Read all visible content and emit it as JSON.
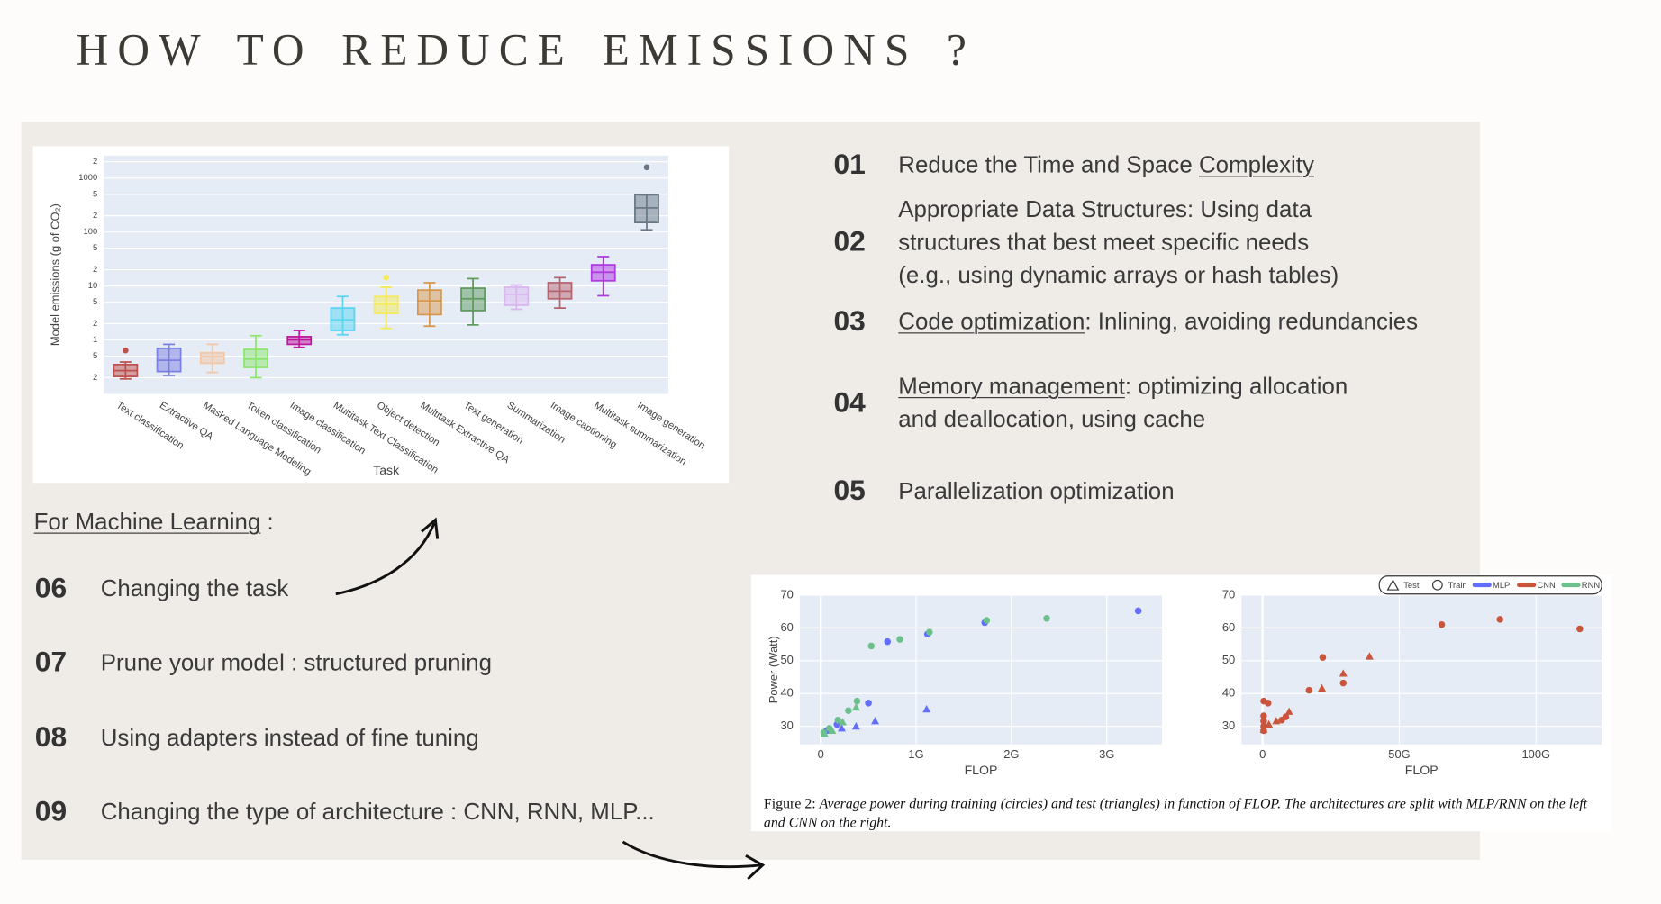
{
  "title": "HOW TO REDUCE EMISSIONS ?",
  "items": [
    {
      "number": "01",
      "lines": [
        [
          {
            "text": "Reduce the Time and Space "
          },
          {
            "text": "Complexity",
            "underline": true
          }
        ]
      ]
    },
    {
      "number": "02",
      "lines": [
        [
          {
            "text": "Appropriate Data Structures: Using data"
          }
        ],
        [
          {
            "text": "structures that best meet specific needs"
          }
        ],
        [
          {
            "text": "(e.g., using dynamic arrays or hash tables)"
          }
        ]
      ]
    },
    {
      "number": "03",
      "lines": [
        [
          {
            "text": "Code optimization",
            "underline": true
          },
          {
            "text": ": Inlining, avoiding redundancies"
          }
        ]
      ]
    },
    {
      "number": "04",
      "lines": [
        [
          {
            "text": "Memory management",
            "underline": true
          },
          {
            "text": ": optimizing allocation"
          }
        ],
        [
          {
            "text": "and deallocation, using cache"
          }
        ]
      ]
    },
    {
      "number": "05",
      "lines": [
        [
          {
            "text": "Parallelization optimization"
          }
        ]
      ]
    }
  ],
  "ml_heading": [
    {
      "text": "For Machine Learning",
      "underline": true
    },
    {
      "text": " :"
    }
  ],
  "ml_items": [
    {
      "number": "06",
      "lines": [
        [
          {
            "text": "Changing the task"
          }
        ]
      ]
    },
    {
      "number": "07",
      "lines": [
        [
          {
            "text": "Prune your model : structured pruning"
          }
        ]
      ]
    },
    {
      "number": "08",
      "lines": [
        [
          {
            "text": "Using adapters instead of fine tuning"
          }
        ]
      ]
    },
    {
      "number": "09",
      "lines": [
        [
          {
            "text": "Changing the type of architecture : CNN, RNN, MLP..."
          }
        ]
      ]
    }
  ],
  "figure_caption": {
    "label": "Figure 2:",
    "text": "Average power during training (circles) and test (triangles) in function of FLOP. The architectures are split with MLP/RNN on the left and CNN on the right."
  },
  "chart_data": [
    {
      "type": "box",
      "xlabel": "Task",
      "ylabel": "Model emissions (g of CO₂)",
      "log_y": true,
      "grid": true,
      "ylim": [
        0.1,
        2600
      ],
      "yticks": [
        {
          "value": 0.2,
          "label": "2"
        },
        {
          "value": 0.5,
          "label": "5"
        },
        1,
        {
          "value": 2,
          "label": "2"
        },
        {
          "value": 5,
          "label": "5"
        },
        10,
        {
          "value": 20,
          "label": "2"
        },
        {
          "value": 50,
          "label": "5"
        },
        100,
        {
          "value": 200,
          "label": "2"
        },
        {
          "value": 500,
          "label": "5"
        },
        1000,
        {
          "value": 2000,
          "label": "2"
        }
      ],
      "categories": [
        "Text classification",
        "Extractive QA",
        "Masked Language Modeling",
        "Token classification",
        "Image classification",
        "Multitask Text Classification",
        "Object detection",
        "Multitask Extractive QA",
        "Text generation",
        "Summarization",
        "Image captioning",
        "Multitask summarization",
        "Image generation"
      ],
      "colors": [
        "#c0504d",
        "#7b7fe0",
        "#f2c6a6",
        "#8ee66e",
        "#c0189e",
        "#5ad4f0",
        "#f5ea5a",
        "#d8974e",
        "#5f9a5f",
        "#d9b7ee",
        "#b8646f",
        "#b03adf",
        "#6a7885"
      ],
      "boxes": [
        {
          "min": 0.19,
          "q1": 0.21,
          "median": 0.27,
          "q3": 0.35,
          "max": 0.39,
          "outliers": [
            0.64
          ]
        },
        {
          "min": 0.22,
          "q1": 0.26,
          "median": 0.42,
          "q3": 0.7,
          "max": 0.83,
          "outliers": []
        },
        {
          "min": 0.25,
          "q1": 0.37,
          "median": 0.49,
          "q3": 0.58,
          "max": 0.83,
          "outliers": []
        },
        {
          "min": 0.2,
          "q1": 0.31,
          "median": 0.44,
          "q3": 0.67,
          "max": 1.2,
          "outliers": []
        },
        {
          "min": 0.73,
          "q1": 0.83,
          "median": 1,
          "q3": 1.15,
          "max": 1.5,
          "outliers": []
        },
        {
          "min": 1.25,
          "q1": 1.5,
          "median": 2.36,
          "q3": 3.9,
          "max": 6.4,
          "outliers": []
        },
        {
          "min": 1.64,
          "q1": 3.1,
          "median": 4.6,
          "q3": 6.4,
          "max": 9.5,
          "outliers": [
            14.3
          ]
        },
        {
          "min": 1.8,
          "q1": 2.95,
          "median": 5.3,
          "q3": 8.4,
          "max": 11.5,
          "outliers": []
        },
        {
          "min": 1.9,
          "q1": 3.5,
          "median": 5.8,
          "q3": 9.1,
          "max": 13.7,
          "outliers": []
        },
        {
          "min": 3.7,
          "q1": 4.4,
          "median": 7,
          "q3": 9.5,
          "max": 10.4,
          "outliers": []
        },
        {
          "min": 3.9,
          "q1": 5.8,
          "median": 8,
          "q3": 11.5,
          "max": 14.3,
          "outliers": []
        },
        {
          "min": 6.6,
          "q1": 12.5,
          "median": 18,
          "q3": 24.7,
          "max": 35,
          "outliers": []
        },
        {
          "min": 110,
          "q1": 150,
          "median": 280,
          "q3": 490,
          "max": 490,
          "outliers": [
            1580
          ]
        }
      ]
    },
    {
      "type": "scatter",
      "xlabel": "FLOP",
      "ylabel": "Power (Watt)",
      "grid": true,
      "xlim": [
        -220000000,
        3580000000
      ],
      "ylim": [
        24.5,
        70
      ],
      "xticks": [
        0,
        {
          "value": 1000000000,
          "label": "1G"
        },
        {
          "value": 2000000000,
          "label": "2G"
        },
        {
          "value": 3000000000,
          "label": "3G"
        }
      ],
      "yticks": [
        30,
        40,
        50,
        60,
        70
      ],
      "series": [
        {
          "color": "#636efa",
          "marker": "circle",
          "x": [
            3330000000,
            1720000000,
            1120000000,
            700000000,
            500000000,
            170000000,
            60000000
          ],
          "values": [
            65.2,
            61.6,
            58.1,
            55.8,
            37.1,
            30.6,
            28.7
          ]
        },
        {
          "color": "#636efa",
          "marker": "triangle",
          "x": [
            1110000000,
            570000000,
            370000000,
            220000000,
            110000000
          ],
          "values": [
            35.2,
            31.6,
            30,
            29.4,
            28.7
          ]
        },
        {
          "color": "#6cc08b",
          "marker": "circle",
          "x": [
            2370000000,
            1740000000,
            1140000000,
            830000000,
            530000000,
            380000000,
            290000000,
            180000000,
            90000000,
            30000000
          ],
          "values": [
            62.9,
            62.3,
            58.7,
            56.5,
            54.5,
            37.7,
            34.8,
            31.9,
            29.4,
            28.1
          ]
        },
        {
          "color": "#6cc08b",
          "marker": "triangle",
          "x": [
            370000000,
            230000000,
            120000000,
            40000000
          ],
          "values": [
            35.8,
            31.3,
            28.7,
            27.7
          ]
        }
      ]
    },
    {
      "type": "scatter",
      "xlabel": "FLOP",
      "grid": true,
      "xlim": [
        -7700000000,
        124000000000
      ],
      "ylim": [
        24.5,
        70
      ],
      "xticks": [
        0,
        {
          "value": 50000000000,
          "label": "50G"
        },
        {
          "value": 100000000000,
          "label": "100G"
        }
      ],
      "yticks": [
        30,
        40,
        50,
        60,
        70
      ],
      "legend": [
        {
          "label": "Test",
          "marker": "triangle"
        },
        {
          "label": "Train",
          "marker": "circle"
        },
        {
          "label": "MLP",
          "color": "#636efa"
        },
        {
          "label": "CNN",
          "color": "#c9563c"
        },
        {
          "label": "RNN",
          "color": "#6cc08b"
        }
      ],
      "series": [
        {
          "color": "#c9563c",
          "marker": "circle",
          "x": [
            116000000000,
            86800000000,
            65500000000,
            22000000000,
            29500000000,
            17000000000,
            400000000,
            2000000000,
            400000000,
            400000000,
            400000000,
            400000000,
            8500000000,
            7000000000
          ],
          "values": [
            59.7,
            62.6,
            61,
            51,
            43.2,
            41,
            37.7,
            37.1,
            33.2,
            31.6,
            30,
            28.7,
            32.9,
            31.9
          ]
        },
        {
          "color": "#c9563c",
          "marker": "triangle",
          "x": [
            39100000000,
            29500000000,
            21700000000,
            9700000000,
            5000000000,
            2300000000,
            400000000
          ],
          "values": [
            51.3,
            46.1,
            41.6,
            34.5,
            31.6,
            30.6,
            29
          ]
        }
      ]
    }
  ]
}
